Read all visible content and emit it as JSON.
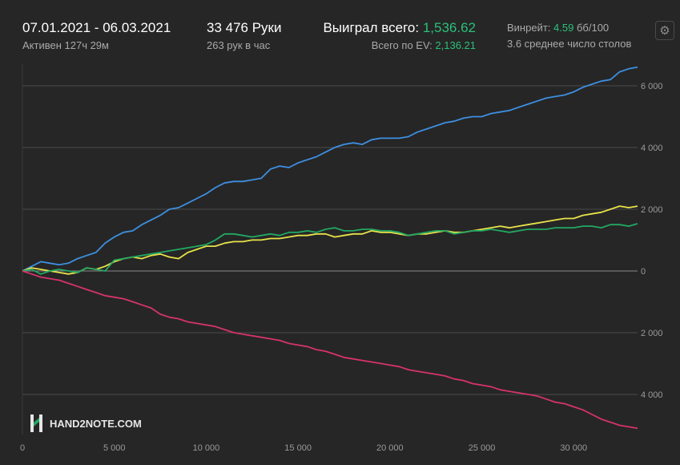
{
  "header": {
    "date_range": "07.01.2021 - 06.03.2021",
    "active": "Активен 127ч 29м",
    "hands": "33 476 Руки",
    "hands_per_hour": "263 рук в час",
    "won_total_label": "Выиграл всего:",
    "won_total_value": "1,536.62",
    "ev_total_label": "Всего по EV:",
    "ev_total_value": "2,136.21",
    "winrate_label": "Винрейт:",
    "winrate_value": "4.59",
    "winrate_unit": "бб/100",
    "avg_tables": "3.6 среднее число столов"
  },
  "logo": {
    "text": "HAND2NOTE.COM"
  },
  "colors": {
    "background": "#262626",
    "blue": "#3d8fe0",
    "yellow": "#e8e24a",
    "green": "#22a862",
    "red": "#d6336b",
    "accent_green": "#2bc07a"
  },
  "chart_data": {
    "type": "line",
    "xlabel": "",
    "ylabel": "",
    "xlim": [
      0,
      33476
    ],
    "ylim": [
      -5300,
      6700
    ],
    "x_ticks": [
      0,
      5000,
      10000,
      15000,
      20000,
      25000,
      30000
    ],
    "x_tick_labels": [
      "0",
      "5 000",
      "10 000",
      "15 000",
      "20 000",
      "25 000",
      "30 000"
    ],
    "y_ticks": [
      6000,
      4000,
      2000,
      0,
      -2000,
      -4000
    ],
    "y_tick_labels": [
      "6 000",
      "4 000",
      "2 000",
      "0",
      "2 000",
      "4 000"
    ],
    "grid": true,
    "x": [
      0,
      500,
      1000,
      1500,
      2000,
      2500,
      3000,
      3500,
      4000,
      4500,
      5000,
      5500,
      6000,
      6500,
      7000,
      7500,
      8000,
      8500,
      9000,
      9500,
      10000,
      10500,
      11000,
      11500,
      12000,
      12500,
      13000,
      13500,
      14000,
      14500,
      15000,
      15500,
      16000,
      16500,
      17000,
      17500,
      18000,
      18500,
      19000,
      19500,
      20000,
      20500,
      21000,
      21500,
      22000,
      22500,
      23000,
      23500,
      24000,
      24500,
      25000,
      25500,
      26000,
      26500,
      27000,
      27500,
      28000,
      28500,
      29000,
      29500,
      30000,
      30500,
      31000,
      31500,
      32000,
      32500,
      33000,
      33476
    ],
    "series": [
      {
        "color": "#3d8fe0",
        "values": [
          0,
          150,
          300,
          250,
          200,
          250,
          400,
          500,
          600,
          900,
          1100,
          1250,
          1300,
          1500,
          1650,
          1800,
          2000,
          2050,
          2200,
          2350,
          2500,
          2700,
          2850,
          2900,
          2900,
          2950,
          3000,
          3300,
          3400,
          3350,
          3500,
          3600,
          3700,
          3850,
          4000,
          4100,
          4150,
          4100,
          4250,
          4300,
          4300,
          4300,
          4350,
          4500,
          4600,
          4700,
          4800,
          4850,
          4950,
          5000,
          5000,
          5100,
          5150,
          5200,
          5300,
          5400,
          5500,
          5600,
          5650,
          5700,
          5800,
          5950,
          6050,
          6150,
          6200,
          6450,
          6550,
          6600
        ]
      },
      {
        "color": "#e8e24a",
        "values": [
          0,
          100,
          50,
          0,
          -50,
          -100,
          -50,
          100,
          50,
          150,
          300,
          400,
          450,
          400,
          500,
          550,
          450,
          400,
          600,
          700,
          800,
          800,
          900,
          950,
          950,
          1000,
          1000,
          1050,
          1050,
          1100,
          1150,
          1150,
          1200,
          1200,
          1100,
          1150,
          1200,
          1200,
          1300,
          1250,
          1250,
          1200,
          1150,
          1200,
          1200,
          1250,
          1300,
          1250,
          1250,
          1300,
          1350,
          1400,
          1450,
          1400,
          1450,
          1500,
          1550,
          1600,
          1650,
          1700,
          1700,
          1800,
          1850,
          1900,
          2000,
          2100,
          2050,
          2100
        ]
      },
      {
        "color": "#22a862",
        "values": [
          0,
          50,
          -100,
          0,
          50,
          0,
          -50,
          100,
          50,
          0,
          350,
          400,
          450,
          500,
          550,
          600,
          650,
          700,
          750,
          800,
          850,
          1000,
          1200,
          1200,
          1150,
          1100,
          1150,
          1200,
          1150,
          1250,
          1250,
          1300,
          1250,
          1350,
          1400,
          1300,
          1300,
          1350,
          1350,
          1300,
          1300,
          1250,
          1150,
          1200,
          1250,
          1300,
          1300,
          1200,
          1250,
          1300,
          1300,
          1350,
          1300,
          1250,
          1300,
          1350,
          1350,
          1350,
          1400,
          1400,
          1400,
          1450,
          1450,
          1400,
          1500,
          1500,
          1450,
          1530
        ]
      },
      {
        "color": "#d6336b",
        "values": [
          0,
          -100,
          -200,
          -250,
          -300,
          -400,
          -500,
          -600,
          -700,
          -800,
          -850,
          -900,
          -1000,
          -1100,
          -1200,
          -1400,
          -1500,
          -1550,
          -1650,
          -1700,
          -1750,
          -1800,
          -1900,
          -2000,
          -2050,
          -2100,
          -2150,
          -2200,
          -2250,
          -2350,
          -2400,
          -2450,
          -2550,
          -2600,
          -2700,
          -2800,
          -2850,
          -2900,
          -2950,
          -3000,
          -3050,
          -3100,
          -3200,
          -3250,
          -3300,
          -3350,
          -3400,
          -3500,
          -3550,
          -3650,
          -3700,
          -3750,
          -3850,
          -3900,
          -3950,
          -4000,
          -4050,
          -4150,
          -4250,
          -4300,
          -4400,
          -4500,
          -4650,
          -4800,
          -4900,
          -5000,
          -5050,
          -5100
        ]
      }
    ]
  }
}
